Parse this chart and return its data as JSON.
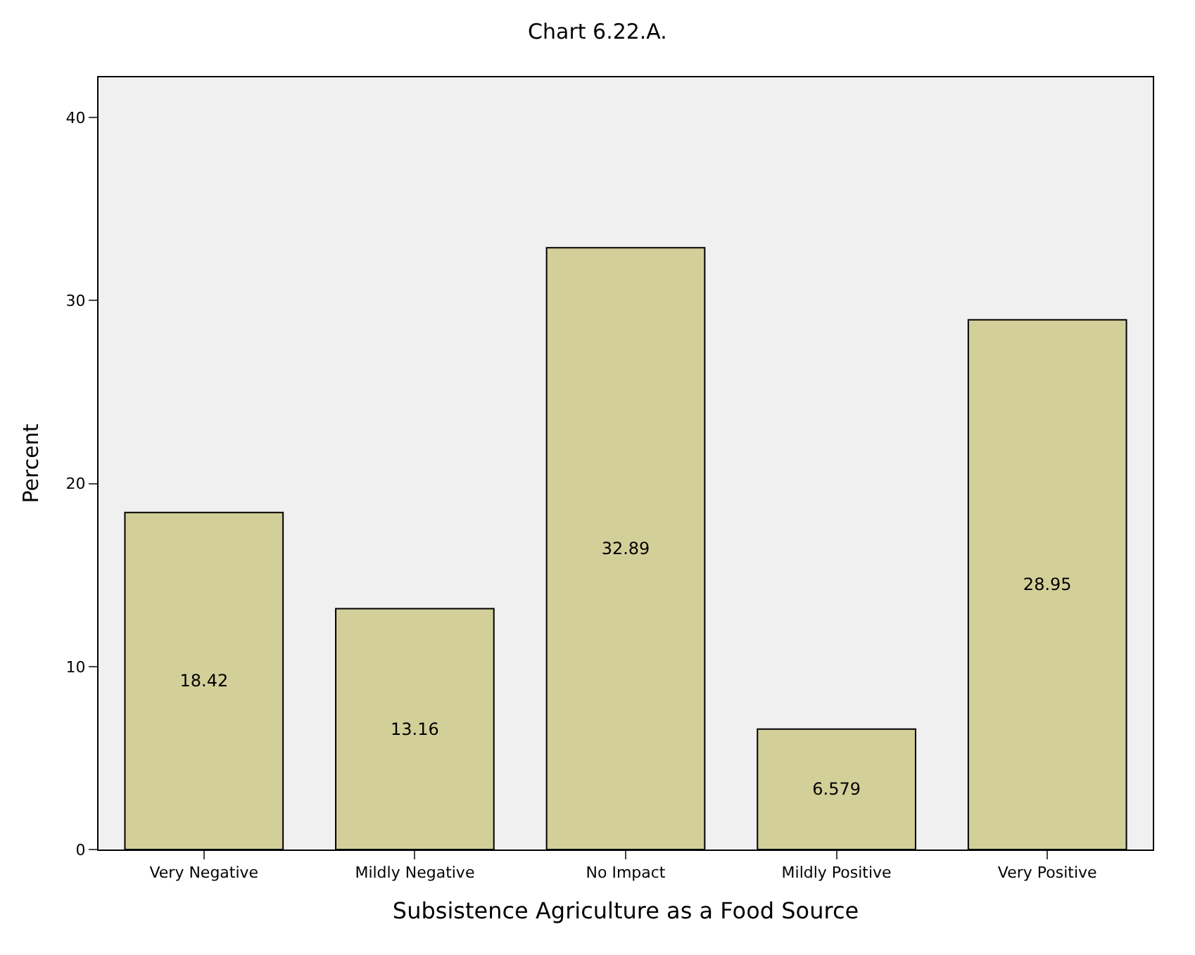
{
  "chart_data": {
    "type": "bar",
    "title": "Chart 6.22.A.",
    "xlabel": "Subsistence Agriculture as a Food Source",
    "ylabel": "Percent",
    "categories": [
      "Very Negative",
      "Mildly Negative",
      "No Impact",
      "Mildly Positive",
      "Very Positive"
    ],
    "values": [
      18.42,
      13.16,
      32.89,
      6.579,
      28.95
    ],
    "color": "#d3cf99",
    "data_labels": true,
    "ylim": [
      0,
      42.2
    ],
    "yticks": [
      0,
      10,
      20,
      30,
      40
    ],
    "grid": false,
    "legend": false
  }
}
